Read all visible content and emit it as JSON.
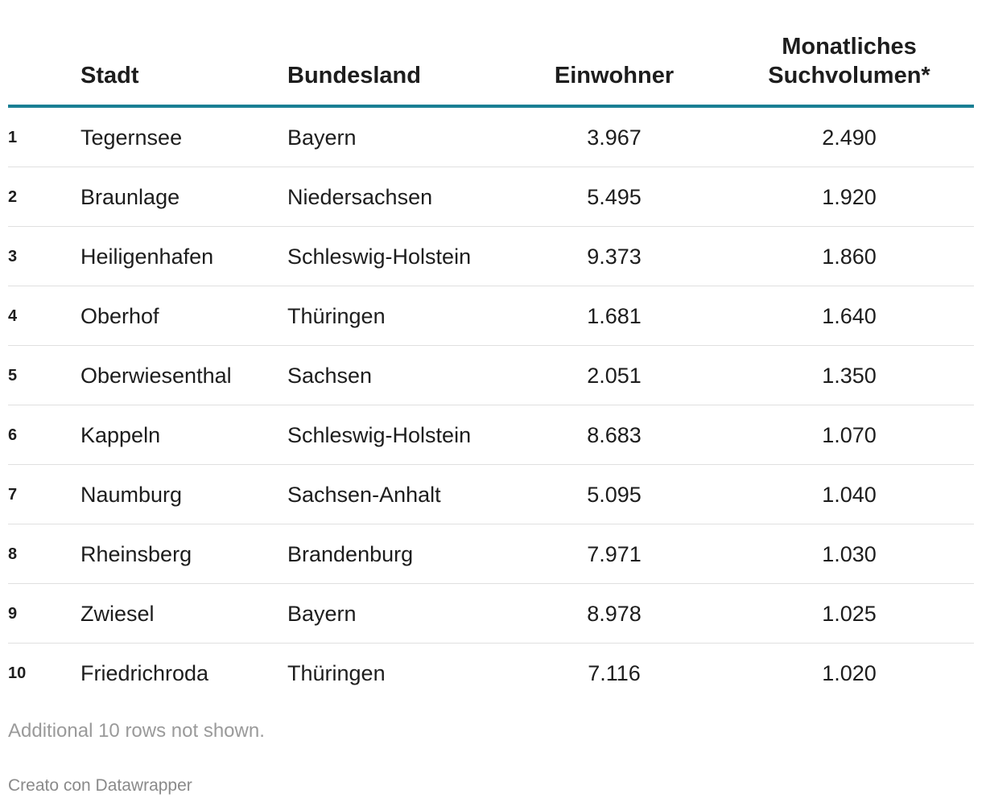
{
  "chart_data": {
    "type": "table",
    "columns": {
      "rank": "",
      "stadt": "Stadt",
      "bundesland": "Bundesland",
      "einwohner": "Einwohner",
      "suchvolumen_line1": "Monatliches",
      "suchvolumen_line2": "Suchvolumen*"
    },
    "rows": [
      {
        "rank": "1",
        "stadt": "Tegernsee",
        "bundesland": "Bayern",
        "einwohner": "3.967",
        "suchvolumen": "2.490"
      },
      {
        "rank": "2",
        "stadt": "Braunlage",
        "bundesland": "Niedersachsen",
        "einwohner": "5.495",
        "suchvolumen": "1.920"
      },
      {
        "rank": "3",
        "stadt": "Heiligenhafen",
        "bundesland": "Schleswig-Holstein",
        "einwohner": "9.373",
        "suchvolumen": "1.860"
      },
      {
        "rank": "4",
        "stadt": "Oberhof",
        "bundesland": "Thüringen",
        "einwohner": "1.681",
        "suchvolumen": "1.640"
      },
      {
        "rank": "5",
        "stadt": "Oberwiesenthal",
        "bundesland": "Sachsen",
        "einwohner": "2.051",
        "suchvolumen": "1.350"
      },
      {
        "rank": "6",
        "stadt": "Kappeln",
        "bundesland": "Schleswig-Holstein",
        "einwohner": "8.683",
        "suchvolumen": "1.070"
      },
      {
        "rank": "7",
        "stadt": "Naumburg",
        "bundesland": "Sachsen-Anhalt",
        "einwohner": "5.095",
        "suchvolumen": "1.040"
      },
      {
        "rank": "8",
        "stadt": "Rheinsberg",
        "bundesland": "Brandenburg",
        "einwohner": "7.971",
        "suchvolumen": "1.030"
      },
      {
        "rank": "9",
        "stadt": "Zwiesel",
        "bundesland": "Bayern",
        "einwohner": "8.978",
        "suchvolumen": "1.025"
      },
      {
        "rank": "10",
        "stadt": "Friedrichroda",
        "bundesland": "Thüringen",
        "einwohner": "7.116",
        "suchvolumen": "1.020"
      }
    ],
    "notes": "Additional 10 rows not shown.",
    "credit": "Creato con Datawrapper"
  },
  "colors": {
    "accent_rule": "#1a7f94",
    "text": "#1d1d1d",
    "muted": "#9a9a9a"
  }
}
